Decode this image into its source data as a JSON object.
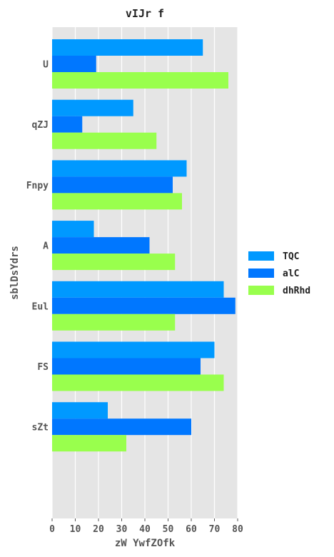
{
  "chart_data": {
    "type": "bar",
    "orientation": "horizontal",
    "title": "vIJr f",
    "xlabel": "zW YwfZOfk",
    "ylabel": "sblDsYdrs",
    "categories": [
      "U",
      "qZJ",
      "Fnpy",
      "A",
      "Eul",
      "FS",
      "sZt"
    ],
    "series": [
      {
        "name": "TQC",
        "color": "#0099ff",
        "values": [
          65,
          35,
          58,
          18,
          74,
          70,
          24
        ]
      },
      {
        "name": "alC",
        "color": "#0077ff",
        "values": [
          19,
          13,
          52,
          42,
          79,
          64,
          60
        ]
      },
      {
        "name": "dhRhd",
        "color": "#99ff4d",
        "values": [
          76,
          45,
          56,
          53,
          53,
          74,
          32
        ]
      }
    ],
    "xlim": [
      0,
      80
    ],
    "xticks": [
      0,
      10,
      20,
      30,
      40,
      50,
      60,
      70,
      80
    ],
    "grid": true,
    "legend_position": "right"
  }
}
